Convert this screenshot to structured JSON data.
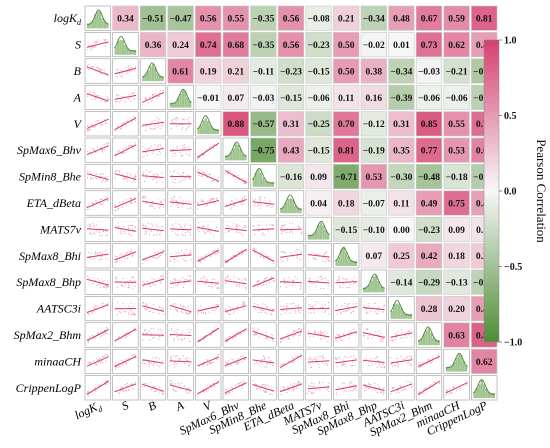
{
  "chart_data": {
    "type": "heatmap",
    "subtype": "correlation-pair-plot",
    "variables": [
      "logK_d",
      "S",
      "B",
      "A",
      "V",
      "SpMax6_Bhv",
      "SpMin8_Bhe",
      "ETA_dBeta",
      "MATS7v",
      "SpMax8_Bhi",
      "SpMax8_Bhp",
      "AATSC3i",
      "SpMax2_Bhm",
      "minaaCH",
      "CrippenLogP"
    ],
    "variable_labels": {
      "logK_d": {
        "main": "logK",
        "sub": "d"
      },
      "S": {
        "main": "S"
      },
      "B": {
        "main": "B"
      },
      "A": {
        "main": "A"
      },
      "V": {
        "main": "V"
      },
      "SpMax6_Bhv": {
        "main": "SpMax6_Bhv"
      },
      "SpMin8_Bhe": {
        "main": "SpMin8_Bhe"
      },
      "ETA_dBeta": {
        "main": "ETA_dBeta"
      },
      "MATS7v": {
        "main": "MATS7v"
      },
      "SpMax8_Bhi": {
        "main": "SpMax8_Bhi"
      },
      "SpMax8_Bhp": {
        "main": "SpMax8_Bhp"
      },
      "AATSC3i": {
        "main": "AATSC3i"
      },
      "SpMax2_Bhm": {
        "main": "SpMax2_Bhm"
      },
      "minaaCH": {
        "main": "minaaCH"
      },
      "CrippenLogP": {
        "main": "CrippenLogP"
      }
    },
    "upper_triangle_correlations": [
      [
        0.34,
        -0.51,
        -0.47,
        0.56,
        0.55,
        -0.35,
        0.56,
        -0.08,
        0.21,
        -0.34,
        0.48,
        0.67,
        0.59,
        0.81
      ],
      [
        0.36,
        0.24,
        0.74,
        0.68,
        -0.35,
        0.56,
        -0.23,
        0.5,
        -0.02,
        0.01,
        0.73,
        0.62,
        0.49
      ],
      [
        0.61,
        0.19,
        0.21,
        -0.11,
        -0.23,
        -0.15,
        0.5,
        0.38,
        -0.34,
        -0.03,
        -0.21,
        -0.44
      ],
      [
        -0.01,
        0.07,
        -0.03,
        -0.15,
        -0.06,
        0.11,
        0.16,
        -0.39,
        -0.06,
        -0.06,
        -0.35
      ],
      [
        0.88,
        -0.57,
        0.31,
        -0.25,
        0.7,
        -0.12,
        0.31,
        0.85,
        0.55,
        0.75
      ],
      [
        -0.75,
        0.43,
        -0.15,
        0.81,
        -0.19,
        0.35,
        0.77,
        0.53,
        0.63
      ],
      [
        -0.16,
        0.09,
        -0.71,
        0.53,
        -0.3,
        -0.48,
        -0.18,
        -0.4
      ],
      [
        0.04,
        0.18,
        -0.07,
        0.11,
        0.49,
        0.75,
        0.47
      ],
      [
        -0.15,
        -0.1,
        0.0,
        -0.23,
        0.09,
        0.11
      ],
      [
        0.07,
        0.25,
        0.42,
        0.18,
        0.24
      ],
      [
        -0.14,
        -0.29,
        -0.13,
        -0.34
      ],
      [
        0.28,
        0.2,
        0.49
      ],
      [
        0.63,
        0.82
      ],
      [
        0.62
      ]
    ],
    "diagonal": "density-histogram",
    "lower_triangle": "scatter-with-regression-line",
    "colorbar": {
      "title": "Pearson Correlation",
      "ticks": [
        "1.0",
        "0.5",
        "0.0",
        "−0.5",
        "−1.0"
      ],
      "range": [
        -1.0,
        1.0
      ],
      "colors": {
        "positive": "#d6406f",
        "zero": "#f7f7f7",
        "negative": "#4e8c35"
      }
    },
    "colors": {
      "scatter_point": "#e8a5b8",
      "regression_line": "#d9366a",
      "density_fill": "#7fb069",
      "density_line": "#3f7a2a",
      "cell_border": "#999999"
    }
  }
}
